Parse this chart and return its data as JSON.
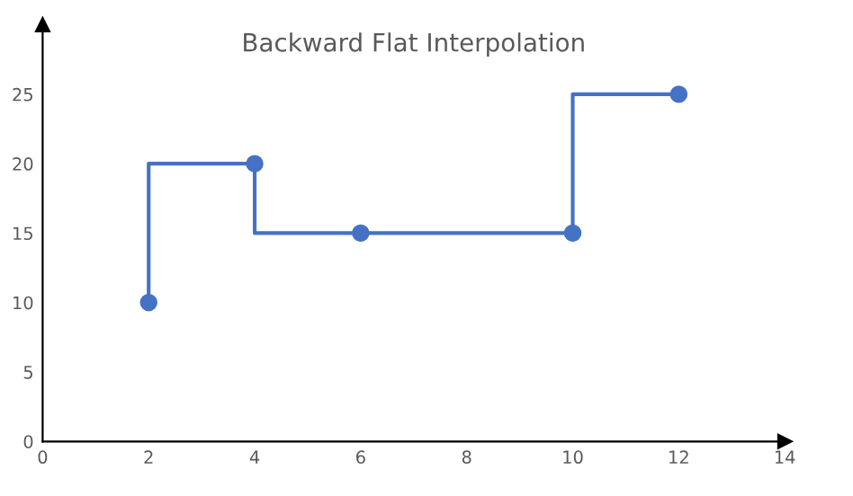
{
  "chart_data": {
    "type": "step",
    "title": "Backward Flat Interpolation",
    "x": [
      2,
      4,
      6,
      10,
      12
    ],
    "series": [
      {
        "color": "#4472c4",
        "values": [
          10,
          20,
          15,
          15,
          25
        ]
      }
    ],
    "marker": "circle",
    "line_style": "solid",
    "xlim": [
      0,
      14
    ],
    "xticks": [
      0,
      2,
      4,
      6,
      8,
      10,
      12,
      14
    ],
    "ylim": [
      0,
      30
    ],
    "yticks": [
      0,
      5,
      10,
      15,
      20,
      25
    ],
    "grid": false,
    "legend": false
  }
}
